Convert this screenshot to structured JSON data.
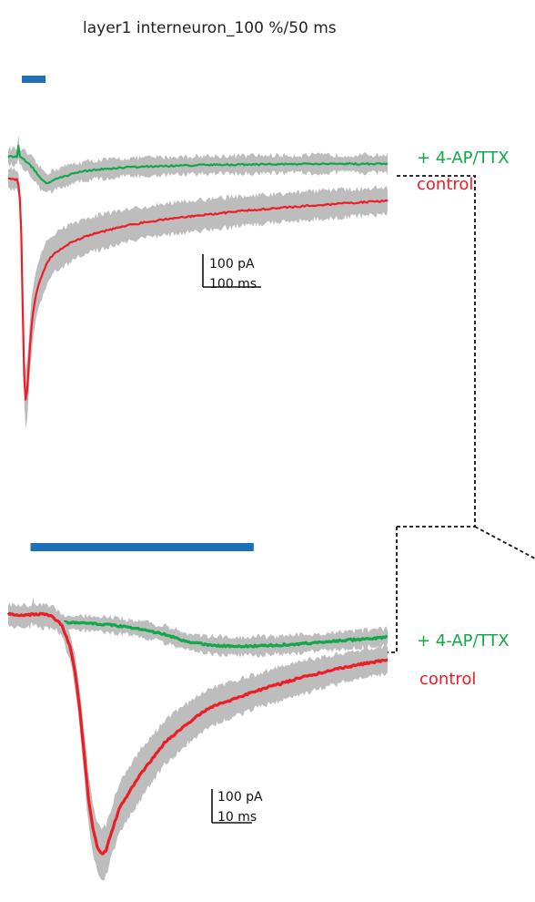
{
  "title": "layer1 interneuron_100 %/50 ms",
  "colors": {
    "stim": "#1f6fb8",
    "drug": "#12a84a",
    "control": "#ee1c25",
    "sem": "#bdbdbd",
    "scale": "#111111",
    "zoom_box": "#111111"
  },
  "chart_data": [
    {
      "type": "line",
      "panel": "overview",
      "units": {
        "x": "ms",
        "y": "pA"
      },
      "stimulus": {
        "start_ms": 0,
        "duration_ms": 50
      },
      "x_range_ms": [
        -25,
        1000
      ],
      "scale_bar": {
        "y_label": "100 pA",
        "x_label": "100 ms",
        "y_value": 100,
        "x_value": 100
      },
      "series": [
        {
          "name": "+ 4-AP/TTX",
          "color_key": "drug",
          "x": [
            -25,
            0,
            2,
            5,
            20,
            40,
            60,
            80,
            100,
            150,
            200,
            300,
            400,
            500,
            700,
            1000
          ],
          "y": [
            0,
            0,
            55,
            0,
            -15,
            -45,
            -90,
            -115,
            -100,
            -72,
            -58,
            -45,
            -40,
            -36,
            -32,
            -30
          ]
        },
        {
          "name": "control",
          "color_key": "control",
          "x": [
            -25,
            0,
            5,
            10,
            15,
            20,
            25,
            30,
            35,
            40,
            50,
            60,
            80,
            100,
            150,
            200,
            300,
            400,
            600,
            800,
            1000
          ],
          "y": [
            0,
            -5,
            -40,
            -200,
            -620,
            -960,
            -940,
            -820,
            -690,
            -600,
            -500,
            -440,
            -360,
            -320,
            -270,
            -240,
            -200,
            -175,
            -140,
            -115,
            -95
          ]
        }
      ]
    },
    {
      "type": "line",
      "panel": "zoom",
      "units": {
        "x": "ms",
        "y": "pA"
      },
      "stimulus": {
        "start_ms": 0,
        "duration_ms": 50
      },
      "x_range_ms": [
        -5,
        80
      ],
      "scale_bar": {
        "y_label": "100 pA",
        "x_label": "10 ms",
        "y_value": 100,
        "x_value": 10
      },
      "series": [
        {
          "name": "+ 4-AP/TTX",
          "color_key": "drug",
          "x": [
            -5,
            0,
            0.5,
            1.5,
            2.5,
            5,
            10,
            15,
            20,
            25,
            30,
            35,
            40,
            45,
            50,
            55,
            60,
            65,
            70,
            75,
            80
          ],
          "y": [
            0,
            -2,
            55,
            -3,
            -6,
            -9,
            -12,
            -16,
            -24,
            -36,
            -55,
            -82,
            -95,
            -100,
            -99,
            -96,
            -91,
            -85,
            -78,
            -72,
            -65
          ]
        },
        {
          "name": "control",
          "color_key": "control",
          "x": [
            -5,
            -2,
            0,
            3,
            5,
            7,
            9,
            10,
            11,
            12,
            13,
            14,
            15,
            16,
            17,
            18,
            20,
            25,
            30,
            35,
            40,
            50,
            60,
            70,
            80
          ],
          "y": [
            0,
            -4,
            -2,
            0,
            -10,
            -40,
            -130,
            -220,
            -350,
            -520,
            -690,
            -805,
            -870,
            -900,
            -880,
            -820,
            -720,
            -590,
            -480,
            -410,
            -350,
            -290,
            -240,
            -200,
            -170
          ]
        }
      ]
    }
  ]
}
